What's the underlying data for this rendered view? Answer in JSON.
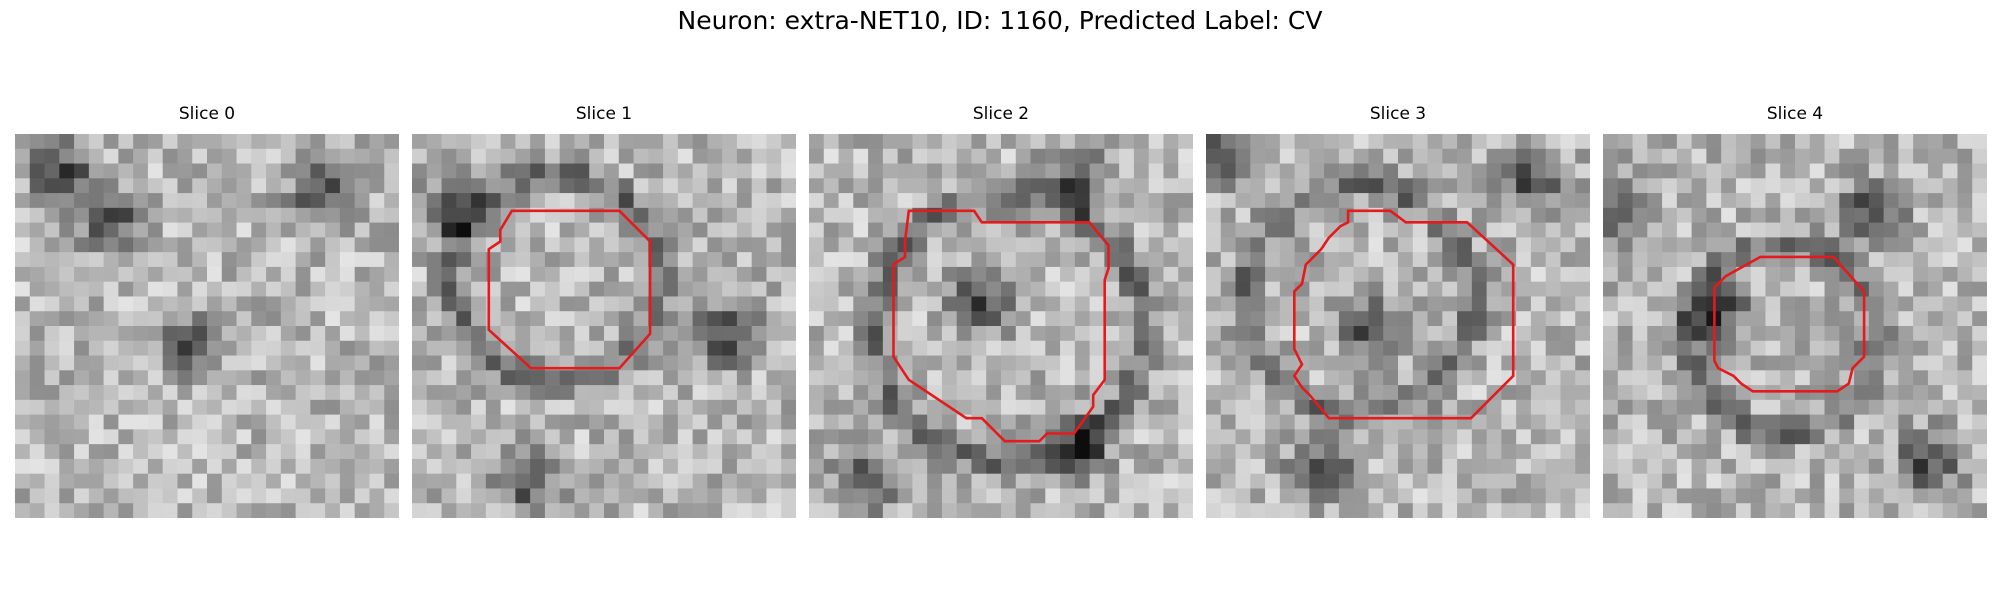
{
  "figure": {
    "title": "Neuron: extra-NET10, ID: 1160, Predicted Label: CV"
  },
  "contour_color": "#e41a1c",
  "colormap": "grayscale",
  "panels": [
    {
      "title": "Slice 0",
      "has_contour": false,
      "seed": 11,
      "dark_centers": [
        [
          0.12,
          0.1
        ],
        [
          0.25,
          0.22
        ],
        [
          0.8,
          0.15
        ],
        [
          0.45,
          0.55
        ]
      ]
    },
    {
      "title": "Slice 1",
      "has_contour": true,
      "seed": 23,
      "dark_centers": [
        [
          0.82,
          0.52
        ],
        [
          0.3,
          0.9
        ],
        [
          0.1,
          0.2
        ]
      ],
      "contour": [
        [
          0.26,
          0.2
        ],
        [
          0.54,
          0.2
        ],
        [
          0.62,
          0.28
        ],
        [
          0.62,
          0.52
        ],
        [
          0.54,
          0.61
        ],
        [
          0.31,
          0.61
        ],
        [
          0.2,
          0.51
        ],
        [
          0.2,
          0.3
        ],
        [
          0.23,
          0.28
        ],
        [
          0.23,
          0.25
        ]
      ]
    },
    {
      "title": "Slice 2",
      "has_contour": true,
      "seed": 37,
      "dark_centers": [
        [
          0.45,
          0.43
        ],
        [
          0.7,
          0.82
        ],
        [
          0.15,
          0.9
        ],
        [
          0.7,
          0.12
        ]
      ],
      "contour": [
        [
          0.26,
          0.2
        ],
        [
          0.43,
          0.2
        ],
        [
          0.45,
          0.23
        ],
        [
          0.73,
          0.23
        ],
        [
          0.78,
          0.29
        ],
        [
          0.78,
          0.35
        ],
        [
          0.77,
          0.38
        ],
        [
          0.77,
          0.64
        ],
        [
          0.74,
          0.68
        ],
        [
          0.74,
          0.71
        ],
        [
          0.69,
          0.78
        ],
        [
          0.62,
          0.78
        ],
        [
          0.6,
          0.8
        ],
        [
          0.51,
          0.8
        ],
        [
          0.45,
          0.74
        ],
        [
          0.41,
          0.74
        ],
        [
          0.26,
          0.64
        ],
        [
          0.22,
          0.58
        ],
        [
          0.22,
          0.34
        ],
        [
          0.25,
          0.32
        ],
        [
          0.25,
          0.28
        ]
      ]
    },
    {
      "title": "Slice 3",
      "has_contour": true,
      "seed": 51,
      "dark_centers": [
        [
          0.42,
          0.5
        ],
        [
          0.85,
          0.12
        ],
        [
          0.05,
          0.05
        ],
        [
          0.3,
          0.88
        ]
      ],
      "contour": [
        [
          0.37,
          0.2
        ],
        [
          0.48,
          0.2
        ],
        [
          0.52,
          0.23
        ],
        [
          0.68,
          0.23
        ],
        [
          0.8,
          0.34
        ],
        [
          0.8,
          0.63
        ],
        [
          0.69,
          0.74
        ],
        [
          0.32,
          0.74
        ],
        [
          0.27,
          0.68
        ],
        [
          0.25,
          0.66
        ],
        [
          0.23,
          0.63
        ],
        [
          0.25,
          0.6
        ],
        [
          0.23,
          0.56
        ],
        [
          0.23,
          0.41
        ],
        [
          0.25,
          0.39
        ],
        [
          0.26,
          0.34
        ],
        [
          0.3,
          0.3
        ],
        [
          0.32,
          0.27
        ],
        [
          0.35,
          0.24
        ],
        [
          0.37,
          0.23
        ]
      ]
    },
    {
      "title": "Slice 4",
      "has_contour": true,
      "seed": 67,
      "dark_centers": [
        [
          0.7,
          0.2
        ],
        [
          0.05,
          0.2
        ],
        [
          0.85,
          0.85
        ],
        [
          0.3,
          0.47
        ]
      ],
      "contour": [
        [
          0.41,
          0.32
        ],
        [
          0.6,
          0.32
        ],
        [
          0.68,
          0.41
        ],
        [
          0.68,
          0.58
        ],
        [
          0.65,
          0.61
        ],
        [
          0.64,
          0.65
        ],
        [
          0.61,
          0.67
        ],
        [
          0.39,
          0.67
        ],
        [
          0.36,
          0.65
        ],
        [
          0.34,
          0.63
        ],
        [
          0.3,
          0.61
        ],
        [
          0.29,
          0.59
        ],
        [
          0.29,
          0.4
        ],
        [
          0.32,
          0.37
        ]
      ]
    }
  ]
}
